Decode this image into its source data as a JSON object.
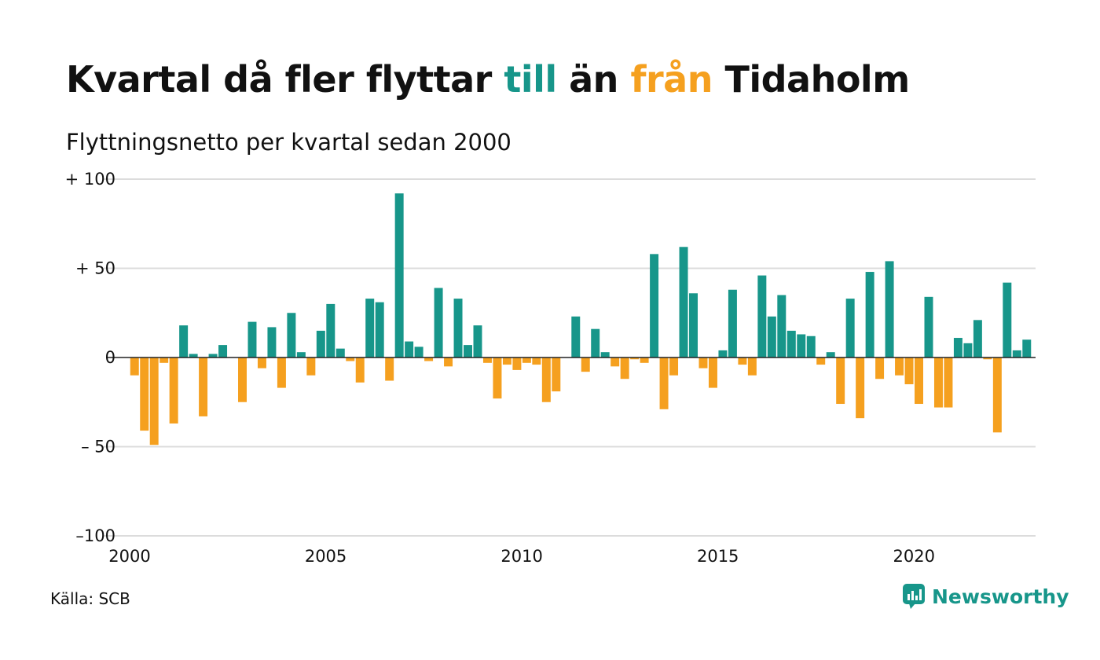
{
  "title": {
    "part1": "Kvartal då fler flyttar ",
    "highlight_in": "till",
    "part2": " än ",
    "highlight_out": "från",
    "part3": " Tidaholm"
  },
  "subtitle": "Flyttningsnetto per kvartal sedan 2000",
  "source": "Källa: SCB",
  "brand": {
    "name": "Newsworthy",
    "icon": "newsworthy-logo-icon"
  },
  "colors": {
    "positive": "#17968a",
    "negative": "#f5a01f",
    "grid": "#dcdcdc",
    "baseline": "#222222",
    "text": "#111111"
  },
  "chart_data": {
    "type": "bar",
    "x_start_year": 2000,
    "periods_per_year": 4,
    "ylim": [
      -100,
      100
    ],
    "yticks": [
      100,
      50,
      0,
      -50,
      -100
    ],
    "ytick_labels": [
      "+ 100",
      "+  50",
      "0",
      "– 50",
      "–100"
    ],
    "xticks": [
      2000,
      2005,
      2010,
      2015,
      2020
    ],
    "xlim": [
      2000,
      2023.1
    ],
    "grid": true,
    "legend": "none",
    "values": [
      -10,
      -41,
      -49,
      -3,
      -37,
      18,
      2,
      -33,
      2,
      7,
      0,
      -25,
      20,
      -6,
      17,
      -17,
      25,
      3,
      -10,
      15,
      30,
      5,
      -2,
      -14,
      33,
      31,
      -13,
      92,
      9,
      6,
      -2,
      39,
      -5,
      33,
      7,
      18,
      -3,
      -23,
      -4,
      -7,
      -3,
      -4,
      -25,
      -19,
      0,
      23,
      -8,
      16,
      3,
      -5,
      -12,
      -1,
      -3,
      58,
      -29,
      -10,
      62,
      36,
      -6,
      -17,
      4,
      38,
      -4,
      -10,
      46,
      23,
      35,
      15,
      13,
      12,
      -4,
      3,
      -26,
      33,
      -34,
      48,
      -12,
      54,
      -10,
      -15,
      -26,
      34,
      -28,
      -28,
      11,
      8,
      21,
      -1,
      -42,
      42,
      4,
      10
    ]
  }
}
